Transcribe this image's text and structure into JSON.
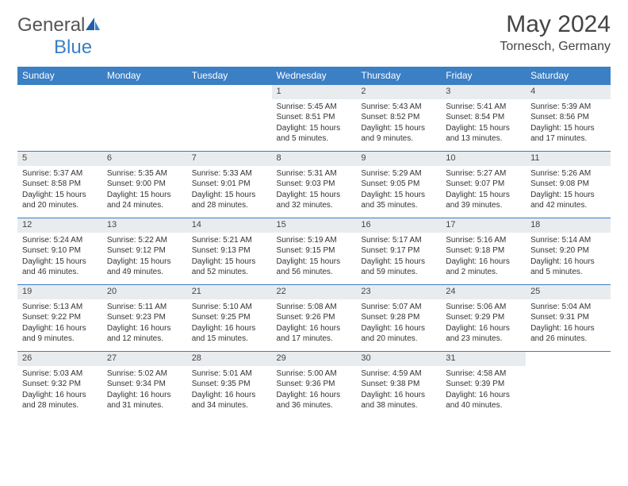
{
  "logo": {
    "text1": "General",
    "text2": "Blue"
  },
  "title": "May 2024",
  "location": "Tornesch, Germany",
  "colors": {
    "header_bg": "#3b7fc4",
    "header_text": "#ffffff",
    "daynum_bg": "#e9ecef",
    "border": "#3b7fc4",
    "body_text": "#333333"
  },
  "weekdays": [
    "Sunday",
    "Monday",
    "Tuesday",
    "Wednesday",
    "Thursday",
    "Friday",
    "Saturday"
  ],
  "weeks": [
    {
      "nums": [
        "",
        "",
        "",
        "1",
        "2",
        "3",
        "4"
      ],
      "info": [
        {
          "empty": true
        },
        {
          "empty": true
        },
        {
          "empty": true
        },
        {
          "sunrise": "Sunrise: 5:45 AM",
          "sunset": "Sunset: 8:51 PM",
          "day1": "Daylight: 15 hours",
          "day2": "and 5 minutes."
        },
        {
          "sunrise": "Sunrise: 5:43 AM",
          "sunset": "Sunset: 8:52 PM",
          "day1": "Daylight: 15 hours",
          "day2": "and 9 minutes."
        },
        {
          "sunrise": "Sunrise: 5:41 AM",
          "sunset": "Sunset: 8:54 PM",
          "day1": "Daylight: 15 hours",
          "day2": "and 13 minutes."
        },
        {
          "sunrise": "Sunrise: 5:39 AM",
          "sunset": "Sunset: 8:56 PM",
          "day1": "Daylight: 15 hours",
          "day2": "and 17 minutes."
        }
      ]
    },
    {
      "nums": [
        "5",
        "6",
        "7",
        "8",
        "9",
        "10",
        "11"
      ],
      "info": [
        {
          "sunrise": "Sunrise: 5:37 AM",
          "sunset": "Sunset: 8:58 PM",
          "day1": "Daylight: 15 hours",
          "day2": "and 20 minutes."
        },
        {
          "sunrise": "Sunrise: 5:35 AM",
          "sunset": "Sunset: 9:00 PM",
          "day1": "Daylight: 15 hours",
          "day2": "and 24 minutes."
        },
        {
          "sunrise": "Sunrise: 5:33 AM",
          "sunset": "Sunset: 9:01 PM",
          "day1": "Daylight: 15 hours",
          "day2": "and 28 minutes."
        },
        {
          "sunrise": "Sunrise: 5:31 AM",
          "sunset": "Sunset: 9:03 PM",
          "day1": "Daylight: 15 hours",
          "day2": "and 32 minutes."
        },
        {
          "sunrise": "Sunrise: 5:29 AM",
          "sunset": "Sunset: 9:05 PM",
          "day1": "Daylight: 15 hours",
          "day2": "and 35 minutes."
        },
        {
          "sunrise": "Sunrise: 5:27 AM",
          "sunset": "Sunset: 9:07 PM",
          "day1": "Daylight: 15 hours",
          "day2": "and 39 minutes."
        },
        {
          "sunrise": "Sunrise: 5:26 AM",
          "sunset": "Sunset: 9:08 PM",
          "day1": "Daylight: 15 hours",
          "day2": "and 42 minutes."
        }
      ]
    },
    {
      "nums": [
        "12",
        "13",
        "14",
        "15",
        "16",
        "17",
        "18"
      ],
      "info": [
        {
          "sunrise": "Sunrise: 5:24 AM",
          "sunset": "Sunset: 9:10 PM",
          "day1": "Daylight: 15 hours",
          "day2": "and 46 minutes."
        },
        {
          "sunrise": "Sunrise: 5:22 AM",
          "sunset": "Sunset: 9:12 PM",
          "day1": "Daylight: 15 hours",
          "day2": "and 49 minutes."
        },
        {
          "sunrise": "Sunrise: 5:21 AM",
          "sunset": "Sunset: 9:13 PM",
          "day1": "Daylight: 15 hours",
          "day2": "and 52 minutes."
        },
        {
          "sunrise": "Sunrise: 5:19 AM",
          "sunset": "Sunset: 9:15 PM",
          "day1": "Daylight: 15 hours",
          "day2": "and 56 minutes."
        },
        {
          "sunrise": "Sunrise: 5:17 AM",
          "sunset": "Sunset: 9:17 PM",
          "day1": "Daylight: 15 hours",
          "day2": "and 59 minutes."
        },
        {
          "sunrise": "Sunrise: 5:16 AM",
          "sunset": "Sunset: 9:18 PM",
          "day1": "Daylight: 16 hours",
          "day2": "and 2 minutes."
        },
        {
          "sunrise": "Sunrise: 5:14 AM",
          "sunset": "Sunset: 9:20 PM",
          "day1": "Daylight: 16 hours",
          "day2": "and 5 minutes."
        }
      ]
    },
    {
      "nums": [
        "19",
        "20",
        "21",
        "22",
        "23",
        "24",
        "25"
      ],
      "info": [
        {
          "sunrise": "Sunrise: 5:13 AM",
          "sunset": "Sunset: 9:22 PM",
          "day1": "Daylight: 16 hours",
          "day2": "and 9 minutes."
        },
        {
          "sunrise": "Sunrise: 5:11 AM",
          "sunset": "Sunset: 9:23 PM",
          "day1": "Daylight: 16 hours",
          "day2": "and 12 minutes."
        },
        {
          "sunrise": "Sunrise: 5:10 AM",
          "sunset": "Sunset: 9:25 PM",
          "day1": "Daylight: 16 hours",
          "day2": "and 15 minutes."
        },
        {
          "sunrise": "Sunrise: 5:08 AM",
          "sunset": "Sunset: 9:26 PM",
          "day1": "Daylight: 16 hours",
          "day2": "and 17 minutes."
        },
        {
          "sunrise": "Sunrise: 5:07 AM",
          "sunset": "Sunset: 9:28 PM",
          "day1": "Daylight: 16 hours",
          "day2": "and 20 minutes."
        },
        {
          "sunrise": "Sunrise: 5:06 AM",
          "sunset": "Sunset: 9:29 PM",
          "day1": "Daylight: 16 hours",
          "day2": "and 23 minutes."
        },
        {
          "sunrise": "Sunrise: 5:04 AM",
          "sunset": "Sunset: 9:31 PM",
          "day1": "Daylight: 16 hours",
          "day2": "and 26 minutes."
        }
      ]
    },
    {
      "nums": [
        "26",
        "27",
        "28",
        "29",
        "30",
        "31",
        ""
      ],
      "info": [
        {
          "sunrise": "Sunrise: 5:03 AM",
          "sunset": "Sunset: 9:32 PM",
          "day1": "Daylight: 16 hours",
          "day2": "and 28 minutes."
        },
        {
          "sunrise": "Sunrise: 5:02 AM",
          "sunset": "Sunset: 9:34 PM",
          "day1": "Daylight: 16 hours",
          "day2": "and 31 minutes."
        },
        {
          "sunrise": "Sunrise: 5:01 AM",
          "sunset": "Sunset: 9:35 PM",
          "day1": "Daylight: 16 hours",
          "day2": "and 34 minutes."
        },
        {
          "sunrise": "Sunrise: 5:00 AM",
          "sunset": "Sunset: 9:36 PM",
          "day1": "Daylight: 16 hours",
          "day2": "and 36 minutes."
        },
        {
          "sunrise": "Sunrise: 4:59 AM",
          "sunset": "Sunset: 9:38 PM",
          "day1": "Daylight: 16 hours",
          "day2": "and 38 minutes."
        },
        {
          "sunrise": "Sunrise: 4:58 AM",
          "sunset": "Sunset: 9:39 PM",
          "day1": "Daylight: 16 hours",
          "day2": "and 40 minutes."
        },
        {
          "empty": true
        }
      ]
    }
  ]
}
